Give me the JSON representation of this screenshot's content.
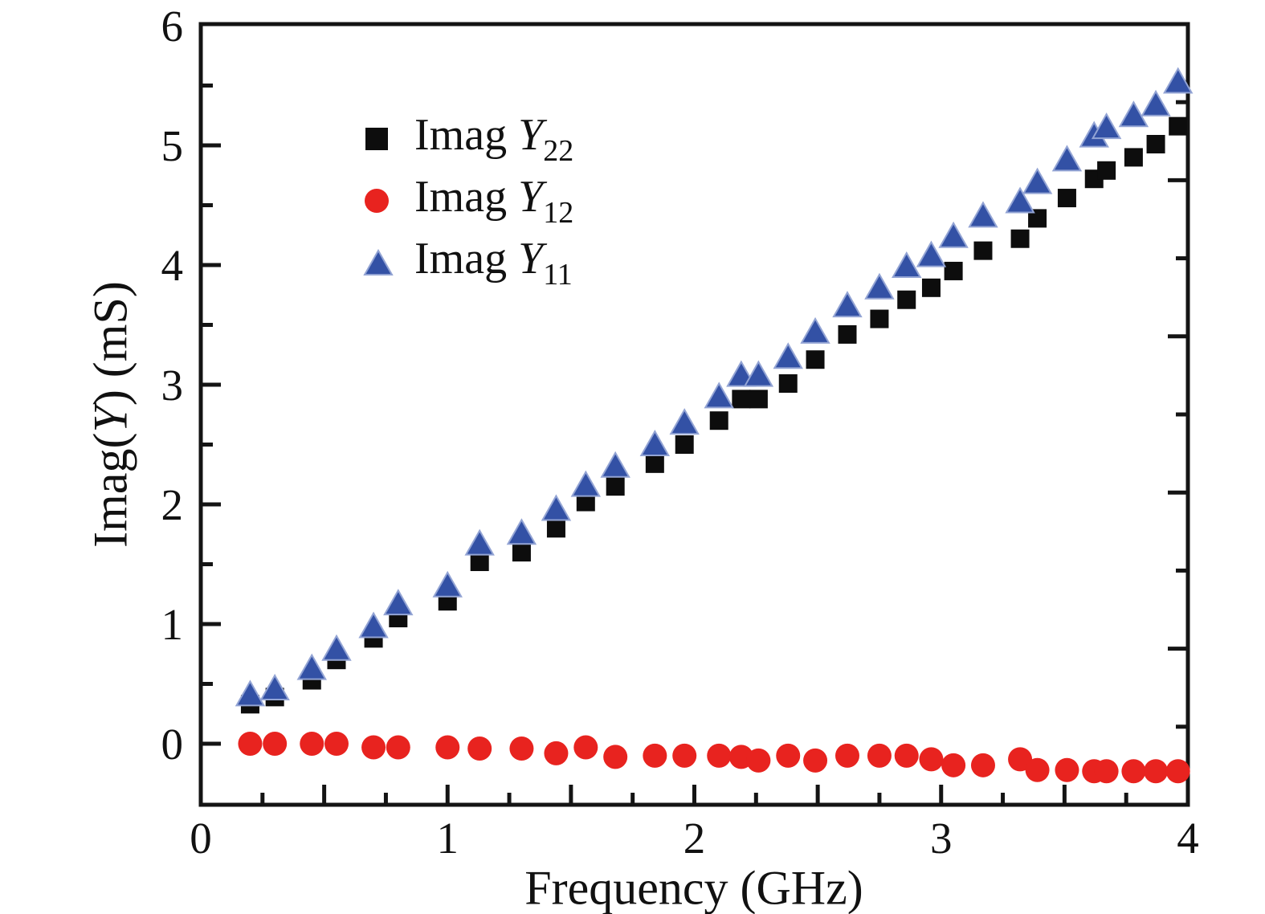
{
  "figure": {
    "background": "#ffffff",
    "frame_color": "#141414",
    "text_color": "#111111"
  },
  "chart_data": {
    "type": "scatter",
    "title": "",
    "xlabel": "Frequency (GHz)",
    "ylabel": "Imag(Y) (mS)",
    "ylabel_parts": {
      "pre": "Imag(",
      "sym": "Y",
      "post": ") (mS)"
    },
    "xlim": [
      0,
      4
    ],
    "ylim": [
      -0.5,
      6
    ],
    "grid": false,
    "legend_position": "upper-left-inside",
    "x_tick_labels": [
      {
        "value": 0,
        "label": "0"
      },
      {
        "value": 1,
        "label": "1"
      },
      {
        "value": 2,
        "label": "2"
      },
      {
        "value": 3,
        "label": "3"
      },
      {
        "value": 4,
        "label": "4"
      }
    ],
    "x_major_ticks": [
      0.5,
      1,
      1.5,
      2,
      2.5,
      3,
      3.5
    ],
    "x_minor_ticks": [
      0.25,
      0.75,
      1.25,
      1.75,
      2.25,
      2.75,
      3.25,
      3.75
    ],
    "y_tick_labels": [
      {
        "value": 0,
        "label": "0"
      },
      {
        "value": 1,
        "label": "1"
      },
      {
        "value": 2,
        "label": "2"
      },
      {
        "value": 3,
        "label": "3"
      },
      {
        "value": 4,
        "label": "4"
      },
      {
        "value": 5,
        "label": "5"
      },
      {
        "value": 6,
        "label": "6"
      }
    ],
    "y_major_ticks": [
      0,
      1,
      2,
      3,
      4,
      5
    ],
    "y_minor_ticks": [
      0.5,
      1.5,
      2.5,
      3.5,
      4.5,
      5.5
    ],
    "x": [
      0.2,
      0.3,
      0.45,
      0.55,
      0.7,
      0.8,
      1.0,
      1.13,
      1.3,
      1.44,
      1.56,
      1.68,
      1.84,
      1.96,
      2.1,
      2.19,
      2.26,
      2.38,
      2.49,
      2.62,
      2.75,
      2.86,
      2.96,
      3.05,
      3.17,
      3.32,
      3.39,
      3.51,
      3.62,
      3.67,
      3.78,
      3.87,
      3.96
    ],
    "series": [
      {
        "name": "Imag Y22",
        "marker": "square",
        "color": "#0d0d0d",
        "values": [
          0.33,
          0.39,
          0.53,
          0.7,
          0.88,
          1.05,
          1.19,
          1.52,
          1.6,
          1.8,
          2.02,
          2.15,
          2.34,
          2.5,
          2.7,
          2.88,
          2.88,
          3.01,
          3.21,
          3.42,
          3.55,
          3.71,
          3.81,
          3.95,
          4.12,
          4.22,
          4.39,
          4.56,
          4.72,
          4.79,
          4.9,
          5.01,
          5.16
        ]
      },
      {
        "name": "Imag Y12",
        "marker": "circle",
        "color": "#e8231f",
        "values": [
          0.0,
          0.0,
          0.0,
          0.0,
          -0.03,
          -0.03,
          -0.03,
          -0.04,
          -0.04,
          -0.08,
          -0.03,
          -0.11,
          -0.1,
          -0.1,
          -0.1,
          -0.11,
          -0.14,
          -0.1,
          -0.14,
          -0.1,
          -0.1,
          -0.1,
          -0.13,
          -0.18,
          -0.18,
          -0.13,
          -0.22,
          -0.22,
          -0.23,
          -0.23,
          -0.23,
          -0.23,
          -0.23
        ]
      },
      {
        "name": "Imag Y11",
        "marker": "triangle",
        "color": "#3351a5",
        "triangle_edge": "#93a4d4",
        "values": [
          0.4,
          0.45,
          0.62,
          0.78,
          0.97,
          1.16,
          1.31,
          1.66,
          1.75,
          1.95,
          2.15,
          2.31,
          2.49,
          2.67,
          2.89,
          3.07,
          3.07,
          3.22,
          3.43,
          3.65,
          3.8,
          3.98,
          4.07,
          4.23,
          4.4,
          4.52,
          4.68,
          4.87,
          5.07,
          5.14,
          5.24,
          5.33,
          5.52
        ]
      }
    ],
    "legend": {
      "items": [
        {
          "prefix": "Imag ",
          "symbol": "Y",
          "subscript": "22"
        },
        {
          "prefix": "Imag ",
          "symbol": "Y",
          "subscript": "12"
        },
        {
          "prefix": "Imag ",
          "symbol": "Y",
          "subscript": "11"
        }
      ]
    }
  }
}
